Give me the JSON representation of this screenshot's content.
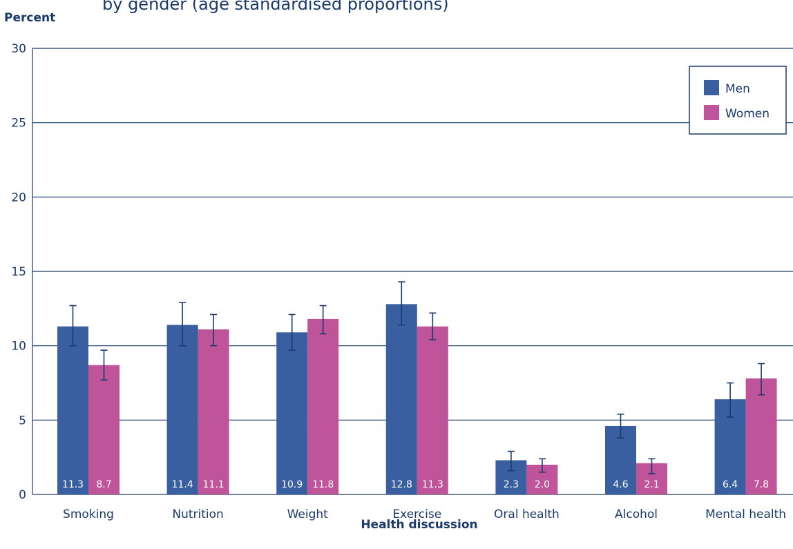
{
  "chart_data": {
    "type": "bar",
    "title": "by gender (age standardised proportions)",
    "xlabel": "Health discussion",
    "ylabel": "Percent",
    "ylim": [
      0,
      30
    ],
    "yticks": [
      0,
      5,
      10,
      15,
      20,
      25,
      30
    ],
    "categories": [
      "Smoking",
      "Nutrition",
      "Weight",
      "Exercise",
      "Oral health",
      "Alcohol",
      "Mental health"
    ],
    "series": [
      {
        "name": "Men",
        "color": "#3a5fa0",
        "values": [
          11.3,
          11.4,
          10.9,
          12.8,
          2.3,
          4.6,
          6.4
        ],
        "value_labels": [
          "11.3",
          "11.4",
          "10.9",
          "12.8",
          "2.3",
          "4.6",
          "6.4"
        ],
        "ci_low": [
          10.0,
          10.0,
          9.7,
          11.4,
          1.6,
          3.8,
          5.2
        ],
        "ci_high": [
          12.7,
          12.9,
          12.1,
          14.3,
          2.9,
          5.4,
          7.5
        ]
      },
      {
        "name": "Women",
        "color": "#c0549a",
        "values": [
          8.7,
          11.1,
          11.8,
          11.3,
          2.0,
          2.1,
          7.8
        ],
        "value_labels": [
          "8.7",
          "11.1",
          "11.8",
          "11.3",
          "2.0",
          "2.1",
          "7.8"
        ],
        "ci_low": [
          7.7,
          10.0,
          10.8,
          10.4,
          1.5,
          1.4,
          6.7
        ],
        "ci_high": [
          9.7,
          12.1,
          12.7,
          12.2,
          2.4,
          2.4,
          8.8
        ]
      }
    ],
    "grid": true,
    "legend_position": "top-right",
    "error_bars": true
  }
}
